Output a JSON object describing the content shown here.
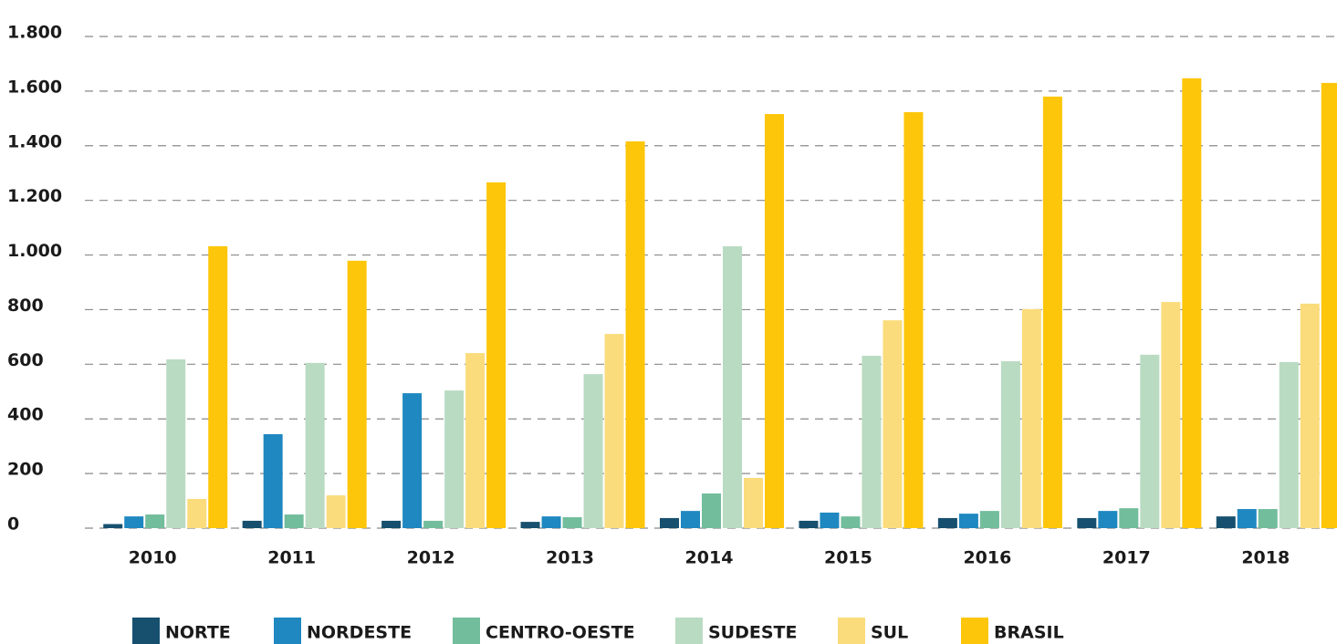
{
  "chart_data": {
    "type": "bar",
    "categories": [
      "2010",
      "2011",
      "2012",
      "2013",
      "2014",
      "2015",
      "2016",
      "2017",
      "2018"
    ],
    "series": [
      {
        "name": "NORTE",
        "color": "#17506f",
        "values": [
          15,
          27,
          27,
          23,
          37,
          27,
          37,
          37,
          43
        ]
      },
      {
        "name": "NORDESTE",
        "color": "#1f88c0",
        "values": [
          43,
          344,
          494,
          43,
          63,
          57,
          53,
          63,
          70
        ]
      },
      {
        "name": "CENTRO-OESTE",
        "color": "#72bd9c",
        "values": [
          50,
          50,
          27,
          40,
          127,
          43,
          63,
          73,
          70
        ]
      },
      {
        "name": "SUDESTE",
        "color": "#b9dbc2",
        "values": [
          618,
          605,
          504,
          564,
          1032,
          631,
          611,
          635,
          608
        ]
      },
      {
        "name": "SUL",
        "color": "#fbdc7c",
        "values": [
          107,
          120,
          641,
          711,
          184,
          761,
          802,
          828,
          822
        ]
      },
      {
        "name": "BRASIL",
        "color": "#fdc60a",
        "values": [
          1032,
          979,
          1266,
          1416,
          1516,
          1523,
          1580,
          1647,
          1630
        ]
      }
    ],
    "ylim": [
      0,
      1800
    ],
    "yticks": [
      0,
      200,
      400,
      600,
      800,
      {
        "value": 1000,
        "label": "1.000"
      },
      {
        "value": 1200,
        "label": "1.200"
      },
      {
        "value": 1400,
        "label": "1.400"
      },
      {
        "value": 1600,
        "label": "1.600"
      },
      {
        "value": 1800,
        "label": "1.800"
      }
    ],
    "grid": true
  }
}
